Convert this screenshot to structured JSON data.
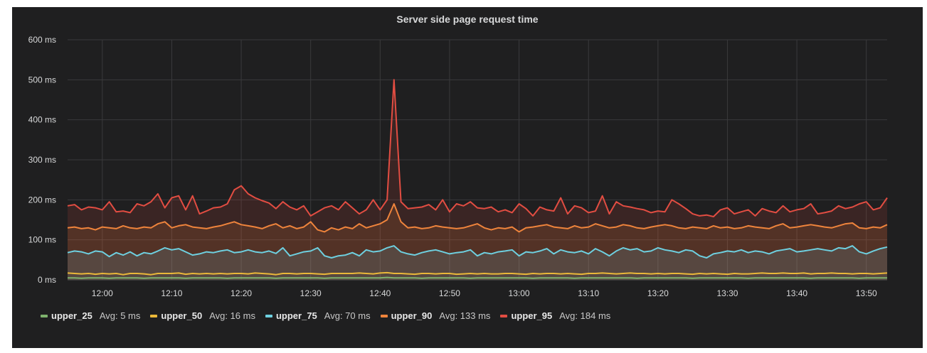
{
  "chart_data": {
    "type": "line",
    "title": "Server side page request time",
    "x": [
      "11:55",
      "11:56",
      "11:57",
      "11:58",
      "11:59",
      "12:00",
      "12:01",
      "12:02",
      "12:03",
      "12:04",
      "12:05",
      "12:06",
      "12:07",
      "12:08",
      "12:09",
      "12:10",
      "12:11",
      "12:12",
      "12:13",
      "12:14",
      "12:15",
      "12:16",
      "12:17",
      "12:18",
      "12:19",
      "12:20",
      "12:21",
      "12:22",
      "12:23",
      "12:24",
      "12:25",
      "12:26",
      "12:27",
      "12:28",
      "12:29",
      "12:30",
      "12:31",
      "12:32",
      "12:33",
      "12:34",
      "12:35",
      "12:36",
      "12:37",
      "12:38",
      "12:39",
      "12:40",
      "12:41",
      "12:42",
      "12:43",
      "12:44",
      "12:45",
      "12:46",
      "12:47",
      "12:48",
      "12:49",
      "12:50",
      "12:51",
      "12:52",
      "12:53",
      "12:54",
      "12:55",
      "12:56",
      "12:57",
      "12:58",
      "12:59",
      "13:00",
      "13:01",
      "13:02",
      "13:03",
      "13:04",
      "13:05",
      "13:06",
      "13:07",
      "13:08",
      "13:09",
      "13:10",
      "13:11",
      "13:12",
      "13:13",
      "13:14",
      "13:15",
      "13:16",
      "13:17",
      "13:18",
      "13:19",
      "13:20",
      "13:21",
      "13:22",
      "13:23",
      "13:24",
      "13:25",
      "13:26",
      "13:27",
      "13:28",
      "13:29",
      "13:30",
      "13:31",
      "13:32",
      "13:33",
      "13:34",
      "13:35",
      "13:36",
      "13:37",
      "13:38",
      "13:39",
      "13:40",
      "13:41",
      "13:42",
      "13:43",
      "13:44",
      "13:45",
      "13:46",
      "13:47",
      "13:48",
      "13:49",
      "13:50",
      "13:51",
      "13:52",
      "13:53"
    ],
    "x_ticks": [
      "12:00",
      "12:10",
      "12:20",
      "12:30",
      "12:40",
      "12:50",
      "13:00",
      "13:10",
      "13:20",
      "13:30",
      "13:40",
      "13:50"
    ],
    "y_ticks": [
      0,
      100,
      200,
      300,
      400,
      500,
      600
    ],
    "y_unit": "ms",
    "ylim": [
      0,
      600
    ],
    "grid": true,
    "legend_position": "bottom",
    "series": [
      {
        "name": "upper_25",
        "avg_label": "Avg: 5 ms",
        "color": "#7eb26d",
        "fill": false,
        "values": [
          5,
          5,
          4,
          5,
          5,
          5,
          4,
          5,
          5,
          5,
          5,
          4,
          5,
          5,
          5,
          5,
          5,
          4,
          5,
          5,
          5,
          5,
          5,
          4,
          5,
          5,
          5,
          5,
          5,
          5,
          4,
          5,
          5,
          5,
          5,
          5,
          5,
          4,
          5,
          5,
          5,
          5,
          5,
          5,
          5,
          5,
          6,
          5,
          5,
          5,
          5,
          4,
          5,
          5,
          5,
          5,
          5,
          5,
          4,
          5,
          5,
          5,
          5,
          5,
          5,
          5,
          5,
          4,
          5,
          5,
          5,
          5,
          5,
          4,
          5,
          5,
          5,
          5,
          5,
          5,
          5,
          5,
          4,
          5,
          5,
          5,
          5,
          5,
          5,
          5,
          4,
          5,
          5,
          5,
          5,
          5,
          5,
          5,
          4,
          5,
          5,
          5,
          5,
          5,
          5,
          5,
          5,
          4,
          5,
          5,
          5,
          5,
          5,
          5,
          4,
          5,
          5,
          5,
          5
        ]
      },
      {
        "name": "upper_50",
        "avg_label": "Avg: 16 ms",
        "color": "#eab839",
        "fill": false,
        "values": [
          17,
          16,
          15,
          16,
          14,
          16,
          15,
          16,
          13,
          16,
          16,
          15,
          13,
          16,
          16,
          16,
          17,
          14,
          16,
          15,
          16,
          15,
          16,
          15,
          16,
          16,
          15,
          17,
          16,
          15,
          13,
          16,
          16,
          15,
          16,
          16,
          15,
          14,
          16,
          16,
          16,
          16,
          17,
          16,
          15,
          17,
          18,
          16,
          16,
          15,
          14,
          16,
          16,
          15,
          16,
          16,
          14,
          15,
          16,
          15,
          16,
          15,
          15,
          16,
          16,
          15,
          14,
          16,
          15,
          16,
          16,
          15,
          16,
          15,
          14,
          16,
          16,
          17,
          16,
          15,
          16,
          17,
          16,
          16,
          15,
          16,
          15,
          16,
          16,
          15,
          14,
          16,
          15,
          16,
          15,
          14,
          16,
          15,
          15,
          16,
          17,
          16,
          16,
          17,
          16,
          16,
          17,
          15,
          16,
          16,
          17,
          16,
          16,
          15,
          16,
          16,
          15,
          16,
          17
        ]
      },
      {
        "name": "upper_75",
        "avg_label": "Avg: 70 ms",
        "color": "#6ed0e0",
        "fill": true,
        "values": [
          68,
          72,
          70,
          65,
          72,
          70,
          58,
          68,
          62,
          70,
          60,
          68,
          65,
          72,
          80,
          75,
          78,
          70,
          62,
          65,
          70,
          68,
          72,
          75,
          68,
          70,
          75,
          70,
          68,
          72,
          66,
          80,
          60,
          65,
          70,
          72,
          80,
          60,
          55,
          60,
          62,
          68,
          60,
          75,
          70,
          72,
          80,
          85,
          70,
          65,
          62,
          68,
          72,
          75,
          70,
          65,
          68,
          70,
          75,
          60,
          68,
          65,
          70,
          72,
          75,
          60,
          70,
          68,
          72,
          78,
          65,
          75,
          70,
          68,
          72,
          65,
          78,
          70,
          60,
          72,
          80,
          75,
          78,
          70,
          72,
          80,
          75,
          72,
          68,
          75,
          72,
          60,
          55,
          65,
          68,
          72,
          70,
          75,
          68,
          72,
          70,
          65,
          72,
          75,
          78,
          70,
          72,
          75,
          78,
          75,
          72,
          80,
          78,
          85,
          70,
          65,
          72,
          78,
          82
        ]
      },
      {
        "name": "upper_90",
        "avg_label": "Avg: 133 ms",
        "color": "#ef843c",
        "fill": true,
        "values": [
          130,
          132,
          128,
          130,
          125,
          132,
          130,
          128,
          135,
          130,
          128,
          132,
          130,
          140,
          145,
          130,
          135,
          138,
          132,
          130,
          128,
          132,
          135,
          140,
          145,
          138,
          135,
          132,
          128,
          135,
          140,
          130,
          135,
          128,
          132,
          145,
          125,
          120,
          130,
          125,
          132,
          128,
          140,
          130,
          135,
          140,
          150,
          190,
          145,
          130,
          132,
          128,
          130,
          135,
          132,
          130,
          128,
          130,
          135,
          140,
          130,
          125,
          130,
          128,
          132,
          120,
          130,
          132,
          135,
          138,
          132,
          130,
          128,
          135,
          130,
          132,
          140,
          135,
          130,
          132,
          138,
          135,
          130,
          128,
          132,
          135,
          138,
          135,
          130,
          128,
          132,
          130,
          128,
          135,
          130,
          132,
          128,
          130,
          135,
          132,
          130,
          128,
          135,
          140,
          130,
          132,
          135,
          138,
          135,
          132,
          130,
          135,
          140,
          142,
          130,
          128,
          132,
          130,
          138
        ]
      },
      {
        "name": "upper_95",
        "avg_label": "Avg: 184 ms",
        "color": "#e24d42",
        "fill": true,
        "values": [
          185,
          188,
          175,
          182,
          180,
          175,
          195,
          170,
          172,
          168,
          190,
          185,
          195,
          215,
          180,
          205,
          210,
          175,
          210,
          165,
          172,
          180,
          182,
          190,
          225,
          235,
          215,
          205,
          198,
          192,
          178,
          195,
          182,
          175,
          185,
          160,
          170,
          180,
          185,
          175,
          195,
          180,
          165,
          175,
          200,
          175,
          200,
          500,
          195,
          178,
          180,
          182,
          188,
          175,
          200,
          170,
          190,
          185,
          195,
          180,
          178,
          182,
          170,
          175,
          168,
          190,
          178,
          160,
          182,
          175,
          172,
          205,
          165,
          185,
          180,
          168,
          172,
          210,
          165,
          195,
          185,
          182,
          178,
          175,
          168,
          172,
          170,
          200,
          190,
          178,
          165,
          160,
          162,
          158,
          175,
          180,
          165,
          170,
          175,
          160,
          178,
          172,
          168,
          185,
          170,
          175,
          178,
          190,
          165,
          168,
          172,
          185,
          178,
          182,
          190,
          195,
          175,
          180,
          205
        ]
      }
    ]
  }
}
